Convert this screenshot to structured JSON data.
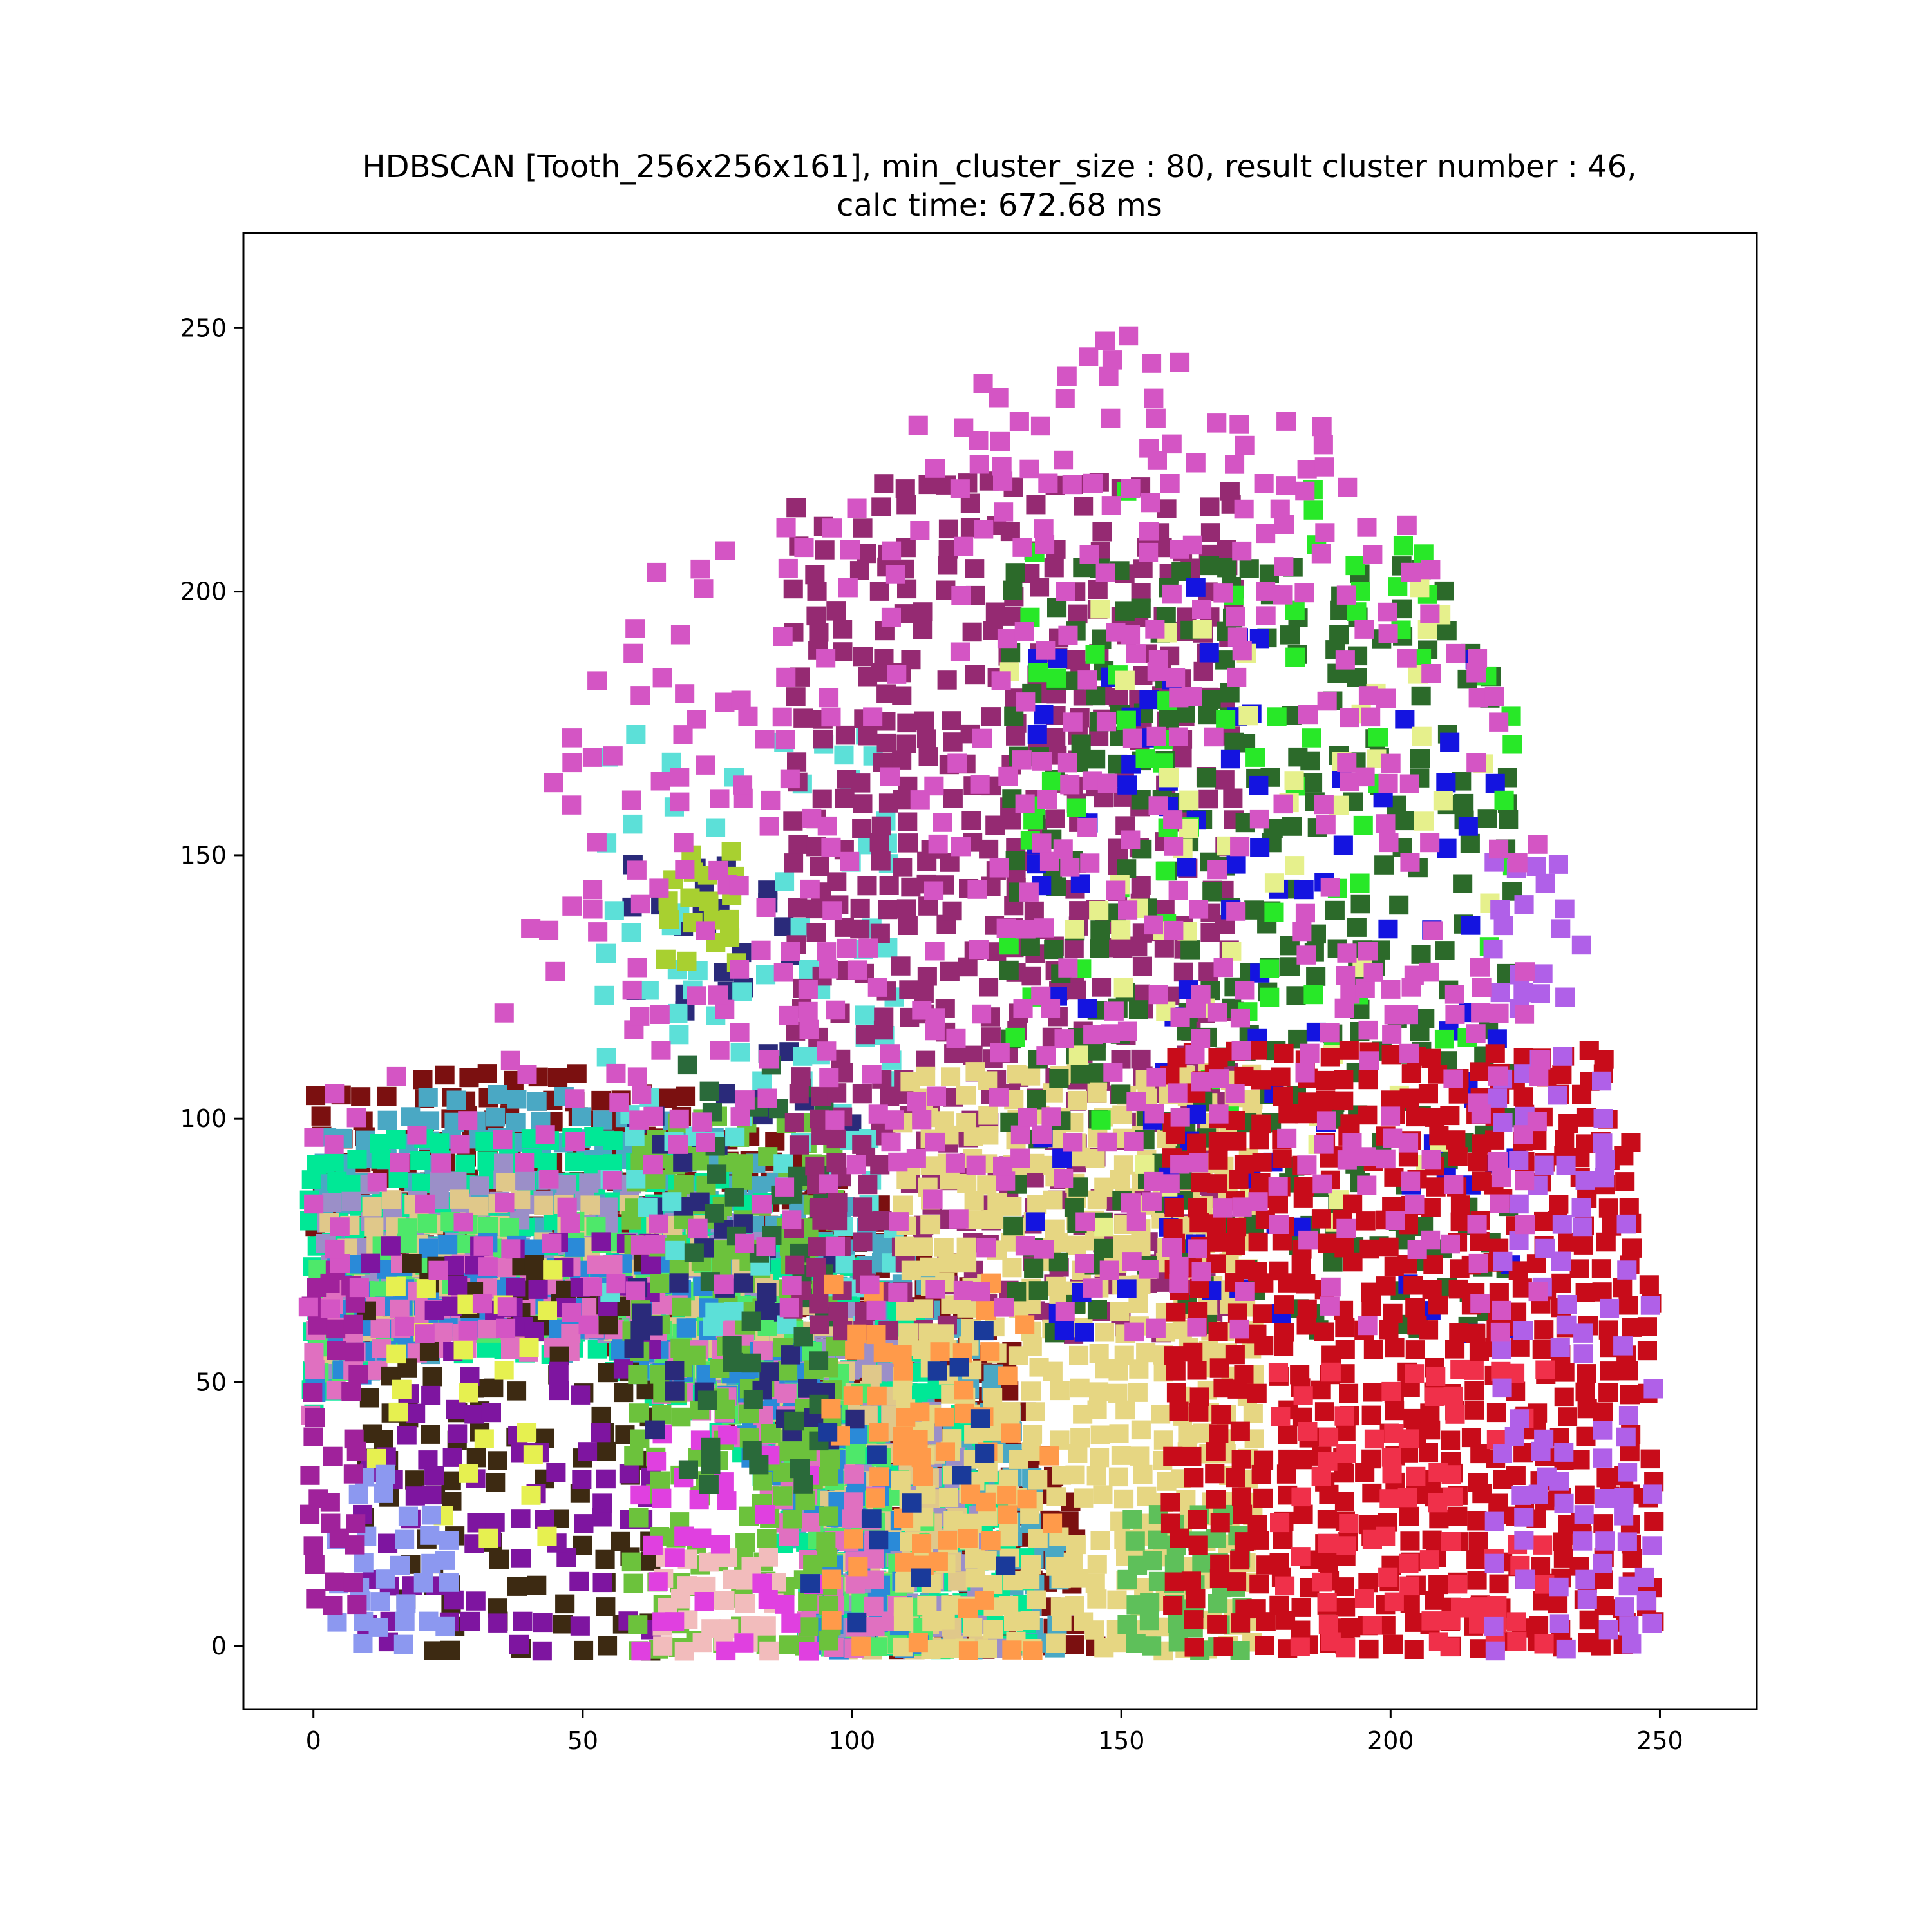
{
  "chart_data": {
    "type": "scatter",
    "title_lines": [
      "HDBSCAN [Tooth_256x256x161], min_cluster_size : 80, result cluster number : 46,",
      "calc time: 672.68 ms"
    ],
    "xlabel": "",
    "ylabel": "",
    "xlim": [
      -13,
      268
    ],
    "ylim": [
      -12,
      268
    ],
    "x_ticks": [
      0,
      50,
      100,
      150,
      200,
      250
    ],
    "y_ticks": [
      0,
      50,
      100,
      150,
      200,
      250
    ],
    "grid": false,
    "marker": "square",
    "cluster_count": 46,
    "regions": [
      {
        "kind": "arc",
        "name": "left-arch-dark-red",
        "color": "#7b1010",
        "cx": 35,
        "cy": 0,
        "ri": 60,
        "ro": 110,
        "sx": 1,
        "density": 0.85
      },
      {
        "kind": "arc",
        "name": "left-arch-teal",
        "color": "#4aa8c4",
        "cx": 35,
        "cy": 0,
        "ri": 57,
        "ro": 105,
        "sx": 1,
        "density": 0.9
      },
      {
        "kind": "arc",
        "name": "left-arch-mint",
        "color": "#00e896",
        "cx": 35,
        "cy": 0,
        "ri": 56,
        "ro": 99,
        "sx": 1,
        "density": 0.9
      },
      {
        "kind": "arc",
        "name": "left-arch-lavender",
        "color": "#9b8fc8",
        "cx": 35,
        "cy": 0,
        "ri": 60,
        "ro": 92,
        "sx": 1,
        "density": 0.85
      },
      {
        "kind": "arc",
        "name": "left-arch-tan",
        "color": "#e0c88a",
        "cx": 35,
        "cy": 0,
        "ri": 62,
        "ro": 88,
        "sx": 1,
        "density": 0.8
      },
      {
        "kind": "arc",
        "name": "left-arch-green",
        "color": "#4ee86a",
        "cx": 35,
        "cy": 0,
        "ri": 60,
        "ro": 82,
        "sx": 1,
        "density": 0.85
      },
      {
        "kind": "arc",
        "name": "left-arch-blue",
        "color": "#2a8ad8",
        "cx": 35,
        "cy": 0,
        "ri": 58,
        "ro": 78,
        "sx": 1,
        "density": 0.8
      },
      {
        "kind": "arc",
        "name": "left-arch-pink",
        "color": "#e070c0",
        "cx": 35,
        "cy": 0,
        "ri": 56,
        "ro": 75,
        "sx": 1,
        "density": 0.7
      },
      {
        "kind": "blob",
        "name": "left-inner-dark-brown",
        "color": "#3d2a12",
        "x": [
          10,
          62
        ],
        "y": [
          0,
          72
        ],
        "density": 0.35
      },
      {
        "kind": "blob",
        "name": "left-inner-purple",
        "color": "#7e15a0",
        "x": [
          10,
          62
        ],
        "y": [
          0,
          78
        ],
        "density": 0.3
      },
      {
        "kind": "blob",
        "name": "left-inner-yellow",
        "color": "#e6f050",
        "x": [
          12,
          45
        ],
        "y": [
          20,
          75
        ],
        "density": 0.12
      },
      {
        "kind": "blob",
        "name": "left-bottom-periwinkle",
        "color": "#8c98f0",
        "x": [
          5,
          28
        ],
        "y": [
          0,
          32
        ],
        "density": 0.5
      },
      {
        "kind": "blob",
        "name": "left-edge-magenta",
        "color": "#a0229b",
        "x": [
          0,
          10
        ],
        "y": [
          0,
          75
        ],
        "density": 0.6
      },
      {
        "kind": "blob",
        "name": "valley-lime",
        "color": "#6cc23c",
        "x": [
          60,
          98
        ],
        "y": [
          0,
          100
        ],
        "density": 0.7
      },
      {
        "kind": "blob",
        "name": "valley-pink-block",
        "color": "#f2bcbc",
        "x": [
          65,
          85
        ],
        "y": [
          0,
          18
        ],
        "density": 1.0
      },
      {
        "kind": "blob",
        "name": "valley-magenta-edge",
        "color": "#e040e0",
        "x": [
          60,
          92
        ],
        "y": [
          0,
          40
        ],
        "density": 0.35
      },
      {
        "kind": "blob",
        "name": "middle-navy",
        "color": "#2a2a7a",
        "x": [
          60,
          100
        ],
        "y": [
          40,
          150
        ],
        "density": 0.25
      },
      {
        "kind": "blob",
        "name": "middle-cyan",
        "color": "#5ce0d8",
        "x": [
          55,
          110
        ],
        "y": [
          60,
          175
        ],
        "density": 0.18
      },
      {
        "kind": "blob",
        "name": "middle-dark-green",
        "color": "#2a6a3a",
        "x": [
          70,
          95
        ],
        "y": [
          30,
          110
        ],
        "density": 0.3
      },
      {
        "kind": "blob",
        "name": "middle-olive",
        "color": "#a8d030",
        "x": [
          66,
          78
        ],
        "y": [
          130,
          152
        ],
        "density": 0.8
      },
      {
        "kind": "blob",
        "name": "purple-ridge",
        "color": "#952a72",
        "x": [
          90,
          170
        ],
        "y": [
          60,
          220
        ],
        "density": 0.6
      },
      {
        "kind": "blob",
        "name": "khaki-mound",
        "color": "#e6d682",
        "x": [
          110,
          175
        ],
        "y": [
          0,
          108
        ],
        "density": 0.9
      },
      {
        "kind": "blob",
        "name": "khaki-green-patch",
        "color": "#5ec05a",
        "x": [
          152,
          174
        ],
        "y": [
          0,
          24
        ],
        "density": 1.0
      },
      {
        "kind": "blob",
        "name": "orange-scatter",
        "color": "#ff9a4a",
        "x": [
          97,
          138
        ],
        "y": [
          0,
          70
        ],
        "density": 0.35
      },
      {
        "kind": "blob",
        "name": "navy-scatter",
        "color": "#1a3a9a",
        "x": [
          92,
          135
        ],
        "y": [
          0,
          70
        ],
        "density": 0.12
      },
      {
        "kind": "blob",
        "name": "upper-forest-green",
        "color": "#2c6a2a",
        "x": [
          130,
          225
        ],
        "y": [
          60,
          205
        ],
        "density": 0.35
      },
      {
        "kind": "blob",
        "name": "upper-blue",
        "color": "#1414e0",
        "x": [
          135,
          225
        ],
        "y": [
          60,
          200
        ],
        "density": 0.12
      },
      {
        "kind": "blob",
        "name": "upper-bright-green",
        "color": "#28e828",
        "x": [
          130,
          225
        ],
        "y": [
          100,
          220
        ],
        "density": 0.1
      },
      {
        "kind": "blob",
        "name": "upper-pale-yellow",
        "color": "#e6f08c",
        "x": [
          130,
          225
        ],
        "y": [
          80,
          200
        ],
        "density": 0.06
      },
      {
        "kind": "blob",
        "name": "red-mound",
        "color": "#c80c1a",
        "x": [
          160,
          250
        ],
        "y": [
          0,
          115
        ],
        "density": 0.85
      },
      {
        "kind": "blob",
        "name": "red-inner-crimson",
        "color": "#f0304a",
        "x": [
          180,
          230
        ],
        "y": [
          0,
          55
        ],
        "density": 0.4
      },
      {
        "kind": "blob",
        "name": "right-edge-lilac",
        "color": "#b060e8",
        "x": [
          220,
          255
        ],
        "y": [
          0,
          150
        ],
        "density": 0.35
      },
      {
        "kind": "blob",
        "name": "outer-halo-pink",
        "color": "#d455c4",
        "x": [
          0,
          230
        ],
        "y": [
          60,
          255
        ],
        "density": 0.25
      }
    ]
  }
}
